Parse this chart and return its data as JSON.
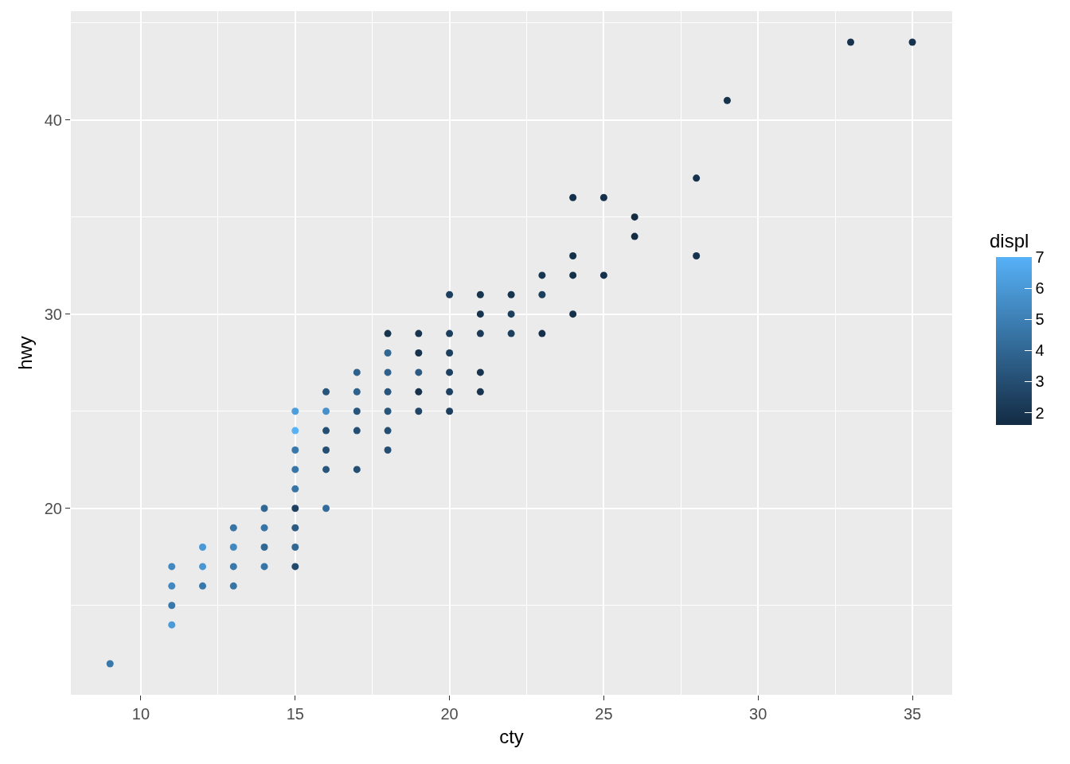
{
  "chart_data": {
    "type": "scatter",
    "xlabel": "cty",
    "ylabel": "hwy",
    "clabel": "displ",
    "xlim": [
      7.73,
      36.29
    ],
    "xticks": [
      10,
      15,
      20,
      25,
      30,
      35
    ],
    "ylim": [
      10.4,
      45.6
    ],
    "yticks": [
      20,
      30,
      40
    ],
    "clim": [
      1.6,
      7
    ],
    "cticks": [
      2,
      3,
      4,
      5,
      6,
      7
    ],
    "grid": true,
    "series": [
      {
        "x": [
          9,
          11,
          11,
          11,
          11,
          12,
          12,
          12,
          13,
          13,
          13,
          13,
          14,
          14,
          14,
          14,
          15,
          15,
          15,
          15,
          15,
          15,
          15,
          15,
          15,
          16,
          16,
          16,
          16,
          16,
          16,
          17,
          17,
          17,
          17,
          17,
          18,
          18,
          18,
          18,
          18,
          18,
          18,
          19,
          19,
          19,
          19,
          19,
          20,
          20,
          20,
          20,
          20,
          20,
          21,
          21,
          21,
          21,
          21,
          22,
          22,
          22,
          23,
          23,
          23,
          24,
          24,
          24,
          24,
          25,
          25,
          26,
          26,
          28,
          28,
          29,
          33,
          35
        ],
        "values": [
          12,
          17,
          16,
          15,
          14,
          18,
          17,
          16,
          19,
          18,
          17,
          16,
          20,
          19,
          18,
          17,
          25,
          24,
          23,
          22,
          21,
          20,
          19,
          18,
          17,
          26,
          25,
          24,
          23,
          22,
          20,
          27,
          26,
          25,
          24,
          22,
          29,
          28,
          27,
          26,
          25,
          24,
          23,
          29,
          28,
          27,
          26,
          25,
          31,
          29,
          28,
          27,
          26,
          25,
          31,
          30,
          29,
          27,
          26,
          31,
          30,
          29,
          32,
          31,
          29,
          36,
          33,
          32,
          30,
          36,
          32,
          35,
          34,
          37,
          33,
          41,
          44,
          44
        ],
        "cvalues": [
          4.7,
          5.4,
          5.4,
          4.7,
          6.1,
          6.0,
          5.9,
          4.7,
          4.6,
          5.4,
          4.7,
          4.6,
          4.0,
          4.6,
          4.0,
          4.6,
          6.2,
          7.0,
          4.7,
          4.6,
          4.6,
          2.5,
          3.5,
          4.0,
          2.8,
          3.3,
          5.7,
          3.0,
          3.0,
          3.3,
          4.2,
          3.8,
          3.8,
          3.3,
          3.0,
          3.0,
          2.0,
          4.0,
          3.8,
          3.3,
          3.3,
          3.0,
          3.0,
          2.0,
          1.9,
          3.5,
          1.9,
          2.7,
          2.4,
          2.4,
          2.4,
          2.5,
          2.5,
          2.4,
          2.0,
          2.0,
          2.2,
          2.0,
          2.0,
          2.0,
          2.4,
          2.4,
          2.0,
          2.4,
          1.8,
          1.8,
          1.8,
          1.8,
          1.8,
          1.8,
          1.8,
          1.6,
          1.6,
          1.9,
          1.9,
          1.9,
          1.9,
          1.9
        ]
      }
    ]
  }
}
